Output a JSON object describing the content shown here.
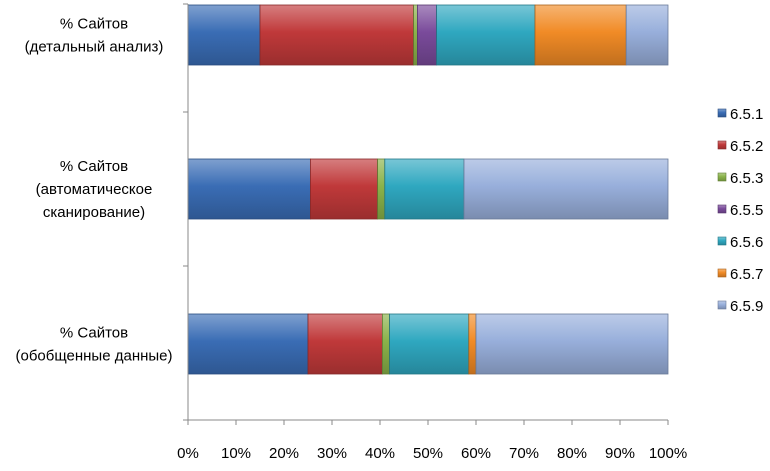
{
  "chart_data": {
    "type": "bar",
    "orientation": "horizontal",
    "stacked": "percent",
    "categories": [
      [
        "% Сайтов",
        "(детальный анализ)"
      ],
      [
        "% Сайтов",
        "(автоматическое",
        "сканирование)"
      ],
      [
        "% Сайтов",
        "(обобщенные данные)"
      ]
    ],
    "series": [
      {
        "name": "6.5.1",
        "color": "#3a6db5",
        "values": [
          15,
          25.5,
          25
        ]
      },
      {
        "name": "6.5.2",
        "color": "#c0393a",
        "values": [
          32,
          14,
          15.5
        ]
      },
      {
        "name": "6.5.3",
        "color": "#8ab34a",
        "values": [
          0.8,
          1.5,
          1.5
        ]
      },
      {
        "name": "6.5.5",
        "color": "#7a4b9b",
        "values": [
          4,
          0,
          0
        ]
      },
      {
        "name": "6.5.6",
        "color": "#2fa8c0",
        "values": [
          20.5,
          16.5,
          16.5
        ]
      },
      {
        "name": "6.5.7",
        "color": "#f18b26",
        "values": [
          19,
          0,
          1.5
        ]
      },
      {
        "name": "6.5.9",
        "color": "#98afdb",
        "values": [
          8.7,
          42.5,
          40
        ]
      }
    ],
    "x_ticks": [
      "0%",
      "10%",
      "20%",
      "30%",
      "40%",
      "50%",
      "60%",
      "70%",
      "80%",
      "90%",
      "100%"
    ],
    "xlim": [
      0,
      100
    ],
    "grid": false,
    "legend_position": "right"
  }
}
